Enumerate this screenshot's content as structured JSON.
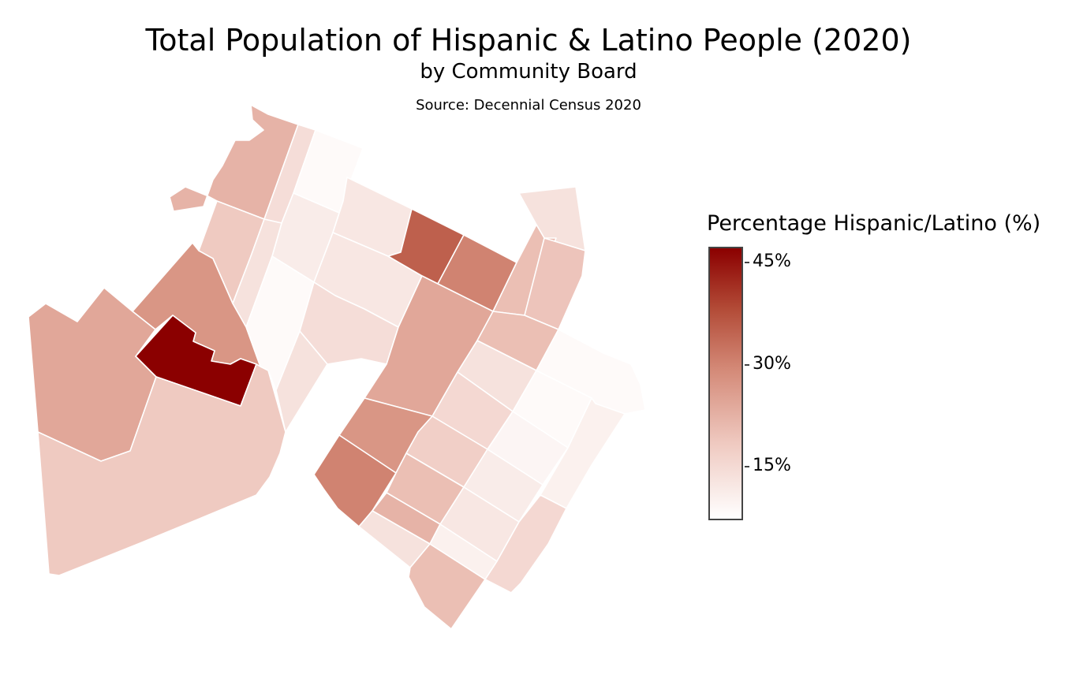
{
  "title": "Total Population of Hispanic & Latino People (2020)",
  "subtitle": "by Community Board",
  "source": "Source: Decennial Census 2020",
  "legend": {
    "title": "Percentage Hispanic/Latino (%)",
    "ticks": [
      "45%",
      "30%",
      "15%"
    ],
    "min_color": "#ffffff",
    "max_color": "#8b0000"
  },
  "chart_data": {
    "type": "choropleth",
    "title": "Total Population of Hispanic & Latino People (2020)",
    "subtitle": "by Community Board",
    "colorbar": {
      "label": "Percentage Hispanic/Latino (%)",
      "range": [
        7,
        47
      ],
      "tick_values": [
        45,
        30,
        15
      ]
    },
    "regions": [
      {
        "id": "cb-1",
        "value": 22
      },
      {
        "id": "cb-2",
        "value": 14
      },
      {
        "id": "cb-3",
        "value": 8
      },
      {
        "id": "cb-4",
        "value": 11
      },
      {
        "id": "cb-5",
        "value": 18
      },
      {
        "id": "cb-6",
        "value": 13
      },
      {
        "id": "cb-7",
        "value": 8
      },
      {
        "id": "cb-8",
        "value": 12
      },
      {
        "id": "cb-9",
        "value": 27
      },
      {
        "id": "cb-10",
        "value": 24
      },
      {
        "id": "cb-11",
        "value": 47
      },
      {
        "id": "cb-12",
        "value": 18
      },
      {
        "id": "cb-13",
        "value": 10
      },
      {
        "id": "cb-14",
        "value": 12
      },
      {
        "id": "cb-15",
        "value": 14
      },
      {
        "id": "cb-16",
        "value": 13
      },
      {
        "id": "cb-17",
        "value": 35
      },
      {
        "id": "cb-18",
        "value": 30
      },
      {
        "id": "cb-19",
        "value": 24
      },
      {
        "id": "cb-20",
        "value": 27
      },
      {
        "id": "cb-21",
        "value": 30
      },
      {
        "id": "cb-22",
        "value": 13
      },
      {
        "id": "cb-23",
        "value": 20
      },
      {
        "id": "cb-24",
        "value": 19
      },
      {
        "id": "cb-25",
        "value": 20
      },
      {
        "id": "cb-26",
        "value": 13
      },
      {
        "id": "cb-27",
        "value": 15
      },
      {
        "id": "cb-28",
        "value": 17
      },
      {
        "id": "cb-29",
        "value": 20
      },
      {
        "id": "cb-30",
        "value": 22
      },
      {
        "id": "cb-31",
        "value": 13
      },
      {
        "id": "cb-32",
        "value": 8
      },
      {
        "id": "cb-33",
        "value": 8
      },
      {
        "id": "cb-34",
        "value": 9
      },
      {
        "id": "cb-35",
        "value": 11
      },
      {
        "id": "cb-36",
        "value": 10
      },
      {
        "id": "cb-37",
        "value": 12
      },
      {
        "id": "cb-38",
        "value": 15
      },
      {
        "id": "cb-39",
        "value": 20
      }
    ]
  }
}
